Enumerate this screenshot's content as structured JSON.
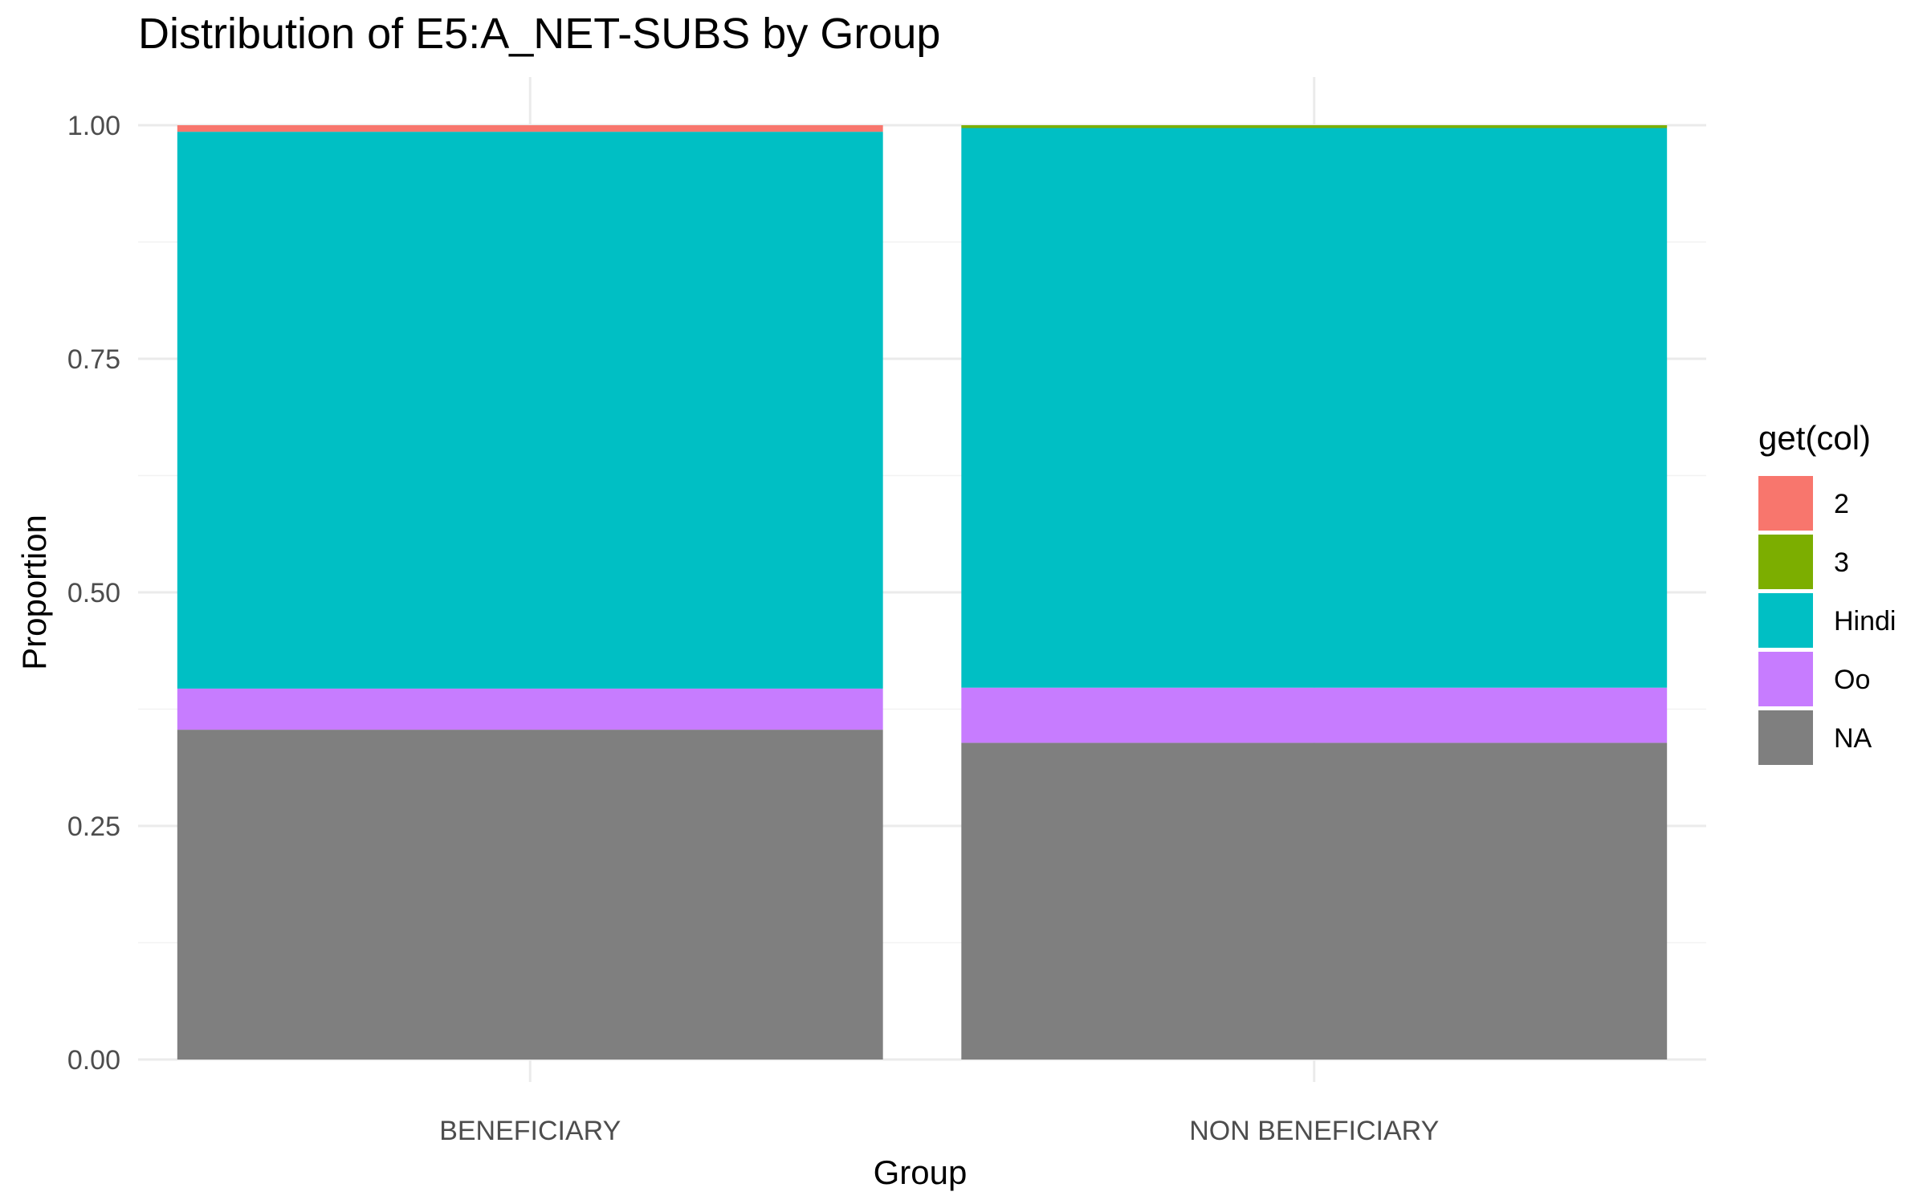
{
  "chart_data": {
    "type": "bar",
    "stacked": true,
    "title": "Distribution of E5:A_NET-SUBS by Group",
    "xlabel": "Group",
    "ylabel": "Proportion",
    "ylim": [
      0,
      1.05
    ],
    "yticks": [
      "0.00",
      "0.25",
      "0.50",
      "0.75",
      "1.00"
    ],
    "ytick_values": [
      0,
      0.25,
      0.5,
      0.75,
      1.0
    ],
    "categories": [
      "BENEFICIARY",
      "NON BENEFICIARY"
    ],
    "legend_title": "get(col)",
    "legend_position": "right",
    "grid": true,
    "stack_order_bottom_to_top": [
      "NA",
      "Oo",
      "Hindi",
      "3",
      "2"
    ],
    "series": [
      {
        "name": "2",
        "color": "#F8766D",
        "values": [
          0.007,
          0.0
        ]
      },
      {
        "name": "3",
        "color": "#7CAE00",
        "values": [
          0.0,
          0.003
        ]
      },
      {
        "name": "Hindi",
        "color": "#00BFC4",
        "values": [
          0.596,
          0.599
        ]
      },
      {
        "name": "Oo",
        "color": "#C77CFF",
        "values": [
          0.044,
          0.059
        ]
      },
      {
        "name": "NA",
        "color": "#7F7F7F",
        "values": [
          0.353,
          0.339
        ]
      }
    ]
  }
}
